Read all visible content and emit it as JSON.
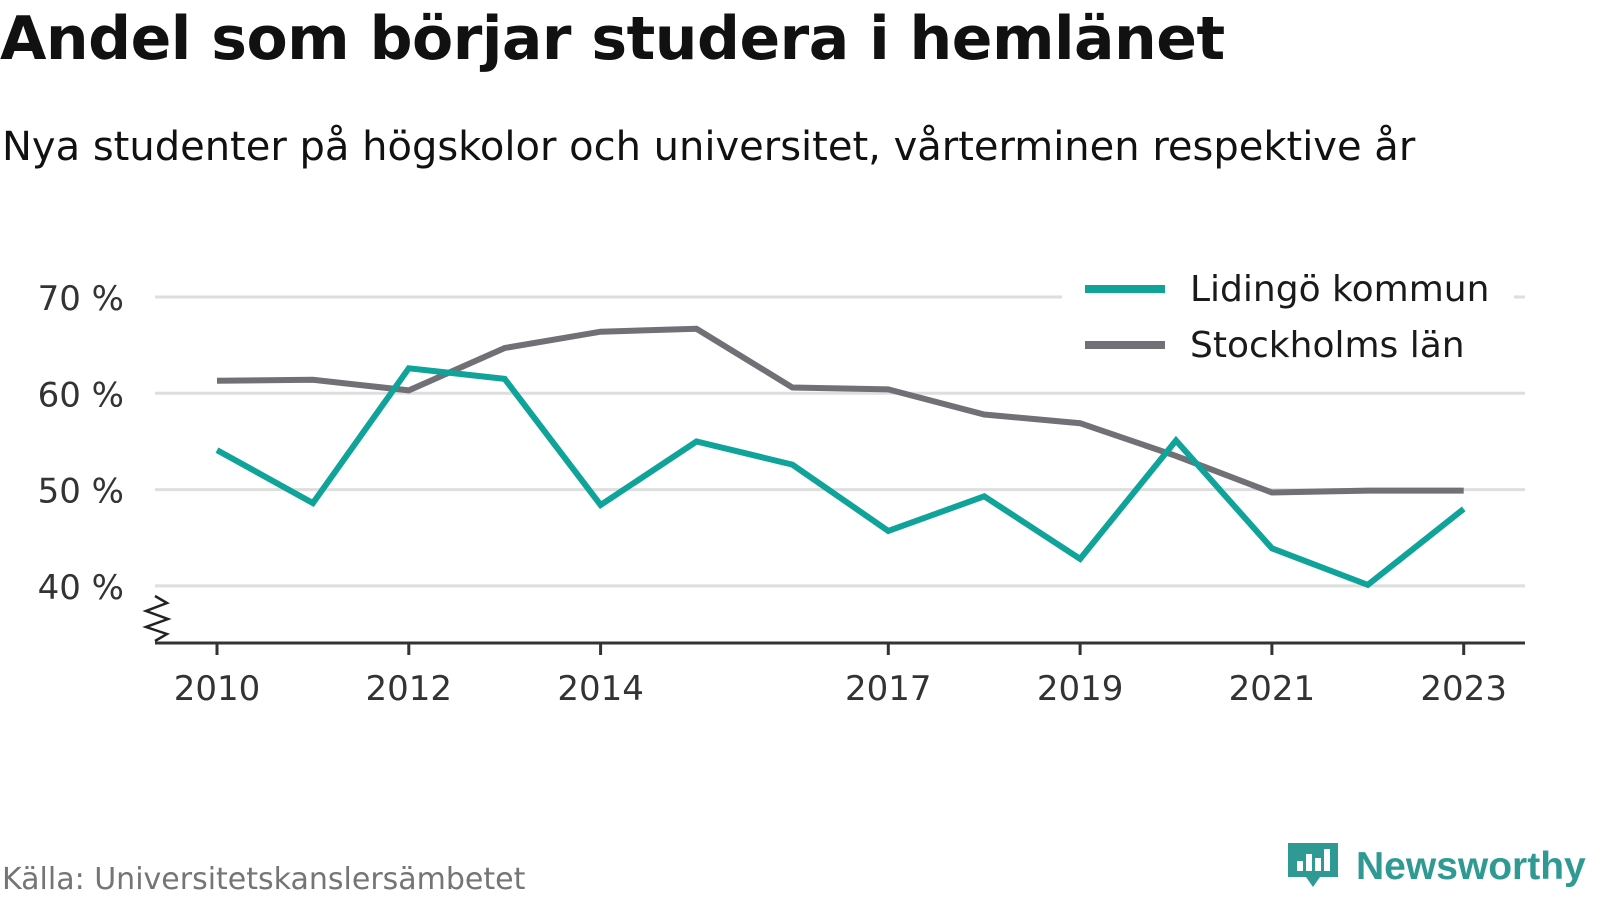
{
  "title": "Andel som börjar studera i hemlänet",
  "subtitle": "Nya studenter på högskolor och universitet, vårterminen respektive år",
  "source": "Källa: Universitetskanslersämbetet",
  "brand": {
    "name": "Newsworthy",
    "icon": "newsworthy-logo-icon",
    "color": "#2f9a94"
  },
  "chart_data": {
    "type": "line",
    "x": [
      2010,
      2011,
      2012,
      2013,
      2014,
      2015,
      2016,
      2017,
      2018,
      2019,
      2020,
      2021,
      2022,
      2023
    ],
    "x_ticks": [
      2010,
      2012,
      2014,
      2017,
      2019,
      2021,
      2023
    ],
    "x_tick_labels": [
      "2010",
      "2012",
      "2014",
      "2017",
      "2019",
      "2021",
      "2023"
    ],
    "y_ticks": [
      40,
      50,
      60,
      70
    ],
    "y_tick_labels": [
      "40 %",
      "50 %",
      "60 %",
      "70 %"
    ],
    "ylim": [
      34,
      72
    ],
    "grid": true,
    "axis_break": true,
    "legend_position": "top-right",
    "series": [
      {
        "name": "Lidingö kommun",
        "color": "#0fa39a",
        "values": [
          54.1,
          48.6,
          62.6,
          61.5,
          48.4,
          55.0,
          52.6,
          45.7,
          49.3,
          42.8,
          55.1,
          43.9,
          40.1,
          48.0
        ]
      },
      {
        "name": "Stockholms län",
        "color": "#707076",
        "values": [
          61.3,
          61.4,
          60.3,
          64.7,
          66.4,
          66.7,
          60.6,
          60.4,
          57.8,
          56.9,
          53.5,
          49.7,
          49.9,
          49.9
        ]
      }
    ]
  }
}
